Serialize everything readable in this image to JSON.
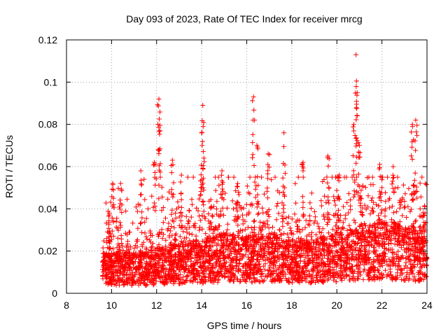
{
  "chart_data": {
    "type": "scatter",
    "title": "Day 093 of 2023, Rate Of TEC Index for receiver mrcg",
    "xlabel": "GPS time / hours",
    "ylabel": "ROTI / TECUs",
    "xlim": [
      8,
      24
    ],
    "ylim": [
      0,
      0.12
    ],
    "xticks": [
      8,
      10,
      12,
      14,
      16,
      18,
      20,
      22,
      24
    ],
    "yticks": [
      0,
      0.02,
      0.04,
      0.06,
      0.08,
      0.1,
      0.12
    ],
    "xtick_labels": [
      "8",
      "10",
      "12",
      "14",
      "16",
      "18",
      "20",
      "22",
      "24"
    ],
    "ytick_labels": [
      "0",
      "0.02",
      "0.04",
      "0.06",
      "0.08",
      "0.1",
      "0.12"
    ],
    "grid": true,
    "marker": "+",
    "color": "#ff0000",
    "series": [
      {
        "name": "ROTI",
        "x_range": [
          9.6,
          24.0
        ],
        "density_per_hour": 450,
        "baseline_profile": [
          [
            9.6,
            0.012
          ],
          [
            11.0,
            0.012
          ],
          [
            12.0,
            0.013
          ],
          [
            13.0,
            0.015
          ],
          [
            14.0,
            0.016
          ],
          [
            15.0,
            0.018
          ],
          [
            16.0,
            0.017
          ],
          [
            17.0,
            0.018
          ],
          [
            18.0,
            0.016
          ],
          [
            19.0,
            0.016
          ],
          [
            20.0,
            0.018
          ],
          [
            21.0,
            0.02
          ],
          [
            22.0,
            0.022
          ],
          [
            23.0,
            0.02
          ],
          [
            24.0,
            0.018
          ]
        ],
        "peaks": [
          [
            9.9,
            0.038
          ],
          [
            10.05,
            0.052
          ],
          [
            10.4,
            0.052
          ],
          [
            11.3,
            0.058
          ],
          [
            11.9,
            0.062
          ],
          [
            12.1,
            0.092
          ],
          [
            12.15,
            0.077
          ],
          [
            12.7,
            0.063
          ],
          [
            13.1,
            0.056
          ],
          [
            14.05,
            0.089
          ],
          [
            14.0,
            0.076
          ],
          [
            14.1,
            0.064
          ],
          [
            14.9,
            0.058
          ],
          [
            15.6,
            0.052
          ],
          [
            16.3,
            0.093
          ],
          [
            16.45,
            0.07
          ],
          [
            16.95,
            0.066
          ],
          [
            17.65,
            0.076
          ],
          [
            18.5,
            0.062
          ],
          [
            19.6,
            0.065
          ],
          [
            20.1,
            0.056
          ],
          [
            20.75,
            0.08
          ],
          [
            20.85,
            0.113
          ],
          [
            20.9,
            0.095
          ],
          [
            21.0,
            0.07
          ],
          [
            21.9,
            0.061
          ],
          [
            22.5,
            0.06
          ],
          [
            23.35,
            0.08
          ],
          [
            23.5,
            0.082
          ],
          [
            23.9,
            0.041
          ]
        ]
      }
    ]
  }
}
